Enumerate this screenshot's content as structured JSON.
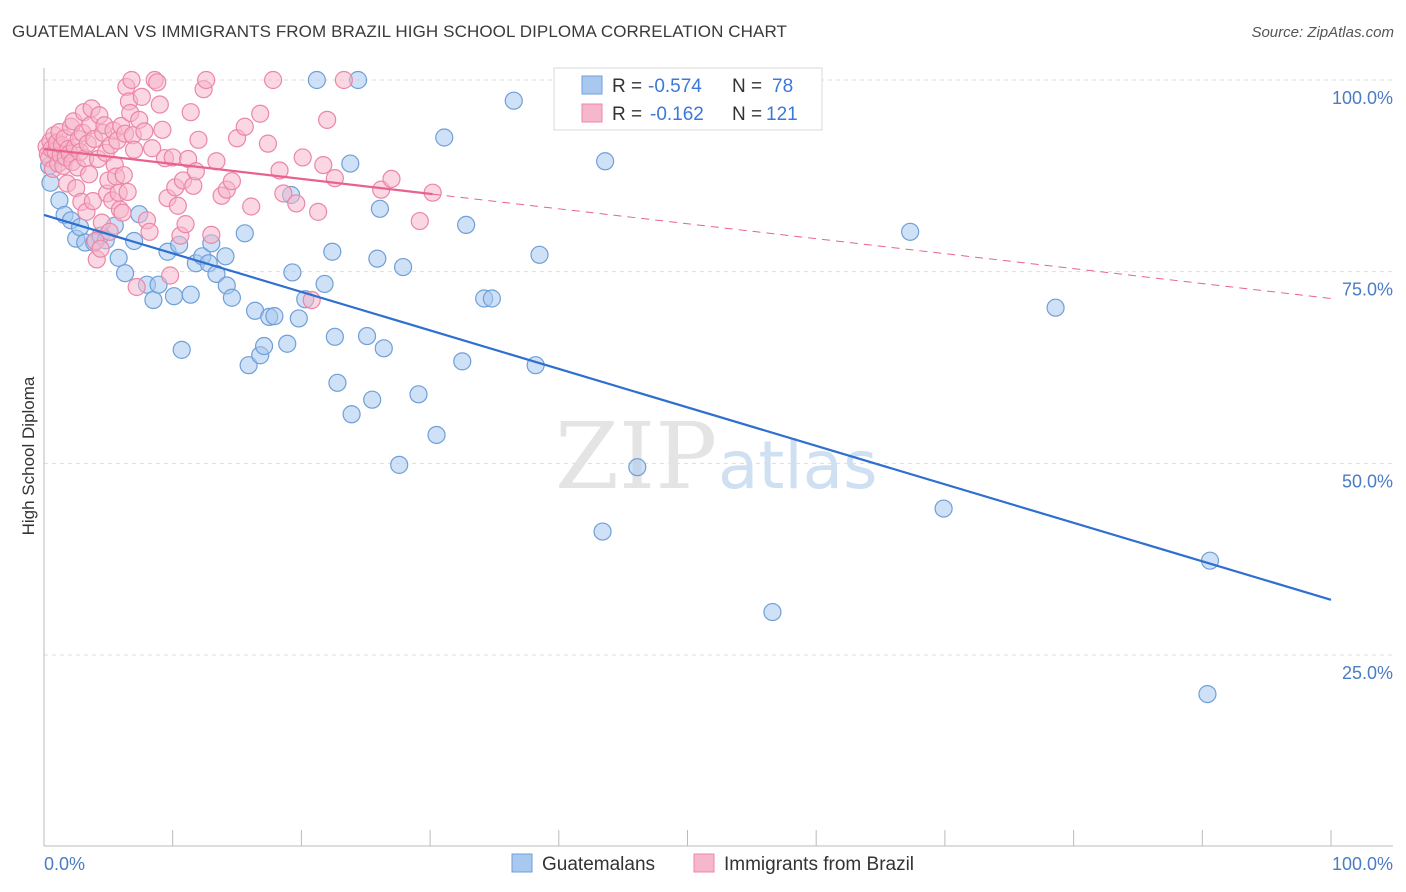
{
  "title": "GUATEMALAN VS IMMIGRANTS FROM BRAZIL HIGH SCHOOL DIPLOMA CORRELATION CHART",
  "source": "Source: ZipAtlas.com",
  "watermark": {
    "part1": "ZIP",
    "part2": "atlas"
  },
  "colors": {
    "blue_fill": "#a8c8f0",
    "blue_stroke": "#6f9fd8",
    "blue_line": "#2e6fd0",
    "pink_fill": "#f6b6cb",
    "pink_stroke": "#ec86a8",
    "pink_line": "#e8628e",
    "tick_text": "#4a7cc4",
    "grid": "#dddddd"
  },
  "legend": {
    "series": [
      {
        "r_label": "R =",
        "r_value": "-0.574",
        "n_label": "N =",
        "n_value": "78"
      },
      {
        "r_label": "R =",
        "r_value": "-0.162",
        "n_label": "N =",
        "n_value": "121"
      }
    ]
  },
  "bottom_legend": [
    "Guatemalans",
    "Immigrants from Brazil"
  ],
  "chart_data": {
    "type": "scatter",
    "title": "GUATEMALAN VS IMMIGRANTS FROM BRAZIL HIGH SCHOOL DIPLOMA CORRELATION CHART",
    "xlabel": "",
    "ylabel": "High School Diploma",
    "xlim": [
      0,
      100
    ],
    "ylim": [
      0,
      102
    ],
    "x_tick_labels": [
      "0.0%",
      "100.0%"
    ],
    "y_ticks": [
      25,
      50,
      75,
      100
    ],
    "y_tick_labels": [
      "25.0%",
      "50.0%",
      "75.0%",
      "100.0%"
    ],
    "series": [
      {
        "name": "Guatemalans",
        "r": -0.574,
        "n": 78,
        "trend": {
          "x0": 0,
          "y0": 82.4,
          "x1": 100,
          "y1": 32.2,
          "solid_to": 100
        },
        "points": [
          [
            0.4,
            88.8
          ],
          [
            0.5,
            86.6
          ],
          [
            1.2,
            84.3
          ],
          [
            1.6,
            82.4
          ],
          [
            2.1,
            81.7
          ],
          [
            2.5,
            79.3
          ],
          [
            2.8,
            80.8
          ],
          [
            3.2,
            78.8
          ],
          [
            3.9,
            78.8
          ],
          [
            4.4,
            79.7
          ],
          [
            4.8,
            79.1
          ],
          [
            5.5,
            81.0
          ],
          [
            5.8,
            76.8
          ],
          [
            6.3,
            74.8
          ],
          [
            7.0,
            79.0
          ],
          [
            7.4,
            82.5
          ],
          [
            8.0,
            73.3
          ],
          [
            8.5,
            71.3
          ],
          [
            8.9,
            73.3
          ],
          [
            9.6,
            77.6
          ],
          [
            10.1,
            71.8
          ],
          [
            10.5,
            78.5
          ],
          [
            10.7,
            64.8
          ],
          [
            11.4,
            72.0
          ],
          [
            11.8,
            76.1
          ],
          [
            12.3,
            77.0
          ],
          [
            12.8,
            76.1
          ],
          [
            13.0,
            78.7
          ],
          [
            13.4,
            74.7
          ],
          [
            14.1,
            77.0
          ],
          [
            14.2,
            73.2
          ],
          [
            14.6,
            71.6
          ],
          [
            15.6,
            80.0
          ],
          [
            15.9,
            62.8
          ],
          [
            16.4,
            69.9
          ],
          [
            16.8,
            64.1
          ],
          [
            17.1,
            65.3
          ],
          [
            17.5,
            69.1
          ],
          [
            17.9,
            69.2
          ],
          [
            18.9,
            65.6
          ],
          [
            19.3,
            74.9
          ],
          [
            19.2,
            85.0
          ],
          [
            19.8,
            68.9
          ],
          [
            20.3,
            71.4
          ],
          [
            21.2,
            100.0
          ],
          [
            21.8,
            73.4
          ],
          [
            22.4,
            77.6
          ],
          [
            22.6,
            66.5
          ],
          [
            22.8,
            60.5
          ],
          [
            23.8,
            89.1
          ],
          [
            23.9,
            56.4
          ],
          [
            24.4,
            100.0
          ],
          [
            25.1,
            66.6
          ],
          [
            25.5,
            58.3
          ],
          [
            25.9,
            76.7
          ],
          [
            26.1,
            83.2
          ],
          [
            26.4,
            65.0
          ],
          [
            27.6,
            49.8
          ],
          [
            27.9,
            75.6
          ],
          [
            29.1,
            59.0
          ],
          [
            30.5,
            53.7
          ],
          [
            31.1,
            92.5
          ],
          [
            32.5,
            63.3
          ],
          [
            32.8,
            81.1
          ],
          [
            34.2,
            71.5
          ],
          [
            34.8,
            71.5
          ],
          [
            36.5,
            97.3
          ],
          [
            38.2,
            62.8
          ],
          [
            38.5,
            77.2
          ],
          [
            43.4,
            41.1
          ],
          [
            43.6,
            89.4
          ],
          [
            46.1,
            49.5
          ],
          [
            56.6,
            30.6
          ],
          [
            67.3,
            80.2
          ],
          [
            69.9,
            44.1
          ],
          [
            78.6,
            70.3
          ],
          [
            90.4,
            19.9
          ],
          [
            90.6,
            37.3
          ]
        ]
      },
      {
        "name": "Immigrants from Brazil",
        "r": -0.162,
        "n": 121,
        "trend": {
          "x0": 0,
          "y0": 91.0,
          "x1": 100,
          "y1": 71.5,
          "solid_to": 30.2
        },
        "points": [
          [
            0.2,
            91.3
          ],
          [
            0.3,
            90.3
          ],
          [
            0.4,
            89.8
          ],
          [
            0.5,
            92.0
          ],
          [
            0.6,
            91.0
          ],
          [
            0.7,
            88.4
          ],
          [
            0.8,
            92.8
          ],
          [
            0.9,
            90.7
          ],
          [
            1.0,
            91.8
          ],
          [
            1.1,
            89.1
          ],
          [
            1.2,
            93.2
          ],
          [
            1.3,
            90.2
          ],
          [
            1.4,
            91.5
          ],
          [
            1.5,
            88.8
          ],
          [
            1.6,
            92.4
          ],
          [
            1.7,
            89.9
          ],
          [
            1.8,
            86.5
          ],
          [
            1.9,
            91.0
          ],
          [
            2.0,
            90.4
          ],
          [
            2.1,
            93.9
          ],
          [
            2.2,
            89.3
          ],
          [
            2.3,
            94.6
          ],
          [
            2.4,
            91.2
          ],
          [
            2.5,
            85.9
          ],
          [
            2.6,
            88.6
          ],
          [
            2.7,
            92.3
          ],
          [
            2.8,
            90.6
          ],
          [
            2.9,
            84.1
          ],
          [
            3.0,
            93.1
          ],
          [
            3.1,
            95.8
          ],
          [
            3.2,
            89.8
          ],
          [
            3.3,
            82.8
          ],
          [
            3.4,
            91.7
          ],
          [
            3.5,
            87.7
          ],
          [
            3.6,
            94.1
          ],
          [
            3.7,
            96.3
          ],
          [
            3.8,
            84.2
          ],
          [
            3.9,
            92.3
          ],
          [
            4.0,
            79.0
          ],
          [
            4.1,
            76.6
          ],
          [
            4.2,
            89.7
          ],
          [
            4.3,
            95.4
          ],
          [
            4.4,
            78.0
          ],
          [
            4.5,
            81.4
          ],
          [
            4.6,
            93.1
          ],
          [
            4.7,
            94.1
          ],
          [
            4.8,
            90.5
          ],
          [
            4.9,
            85.2
          ],
          [
            5.0,
            86.9
          ],
          [
            5.1,
            80.2
          ],
          [
            5.2,
            91.5
          ],
          [
            5.3,
            84.3
          ],
          [
            5.4,
            93.4
          ],
          [
            5.5,
            88.9
          ],
          [
            5.6,
            87.4
          ],
          [
            5.7,
            92.1
          ],
          [
            5.8,
            85.3
          ],
          [
            5.9,
            83.1
          ],
          [
            6.0,
            94.0
          ],
          [
            6.1,
            82.7
          ],
          [
            6.2,
            87.6
          ],
          [
            6.3,
            93.0
          ],
          [
            6.4,
            99.1
          ],
          [
            6.5,
            85.4
          ],
          [
            6.6,
            97.2
          ],
          [
            6.7,
            95.7
          ],
          [
            6.8,
            100.0
          ],
          [
            6.9,
            92.8
          ],
          [
            7.0,
            90.9
          ],
          [
            7.2,
            73.0
          ],
          [
            7.4,
            94.8
          ],
          [
            7.6,
            97.8
          ],
          [
            7.8,
            93.3
          ],
          [
            8.0,
            81.7
          ],
          [
            8.2,
            80.2
          ],
          [
            8.4,
            91.1
          ],
          [
            8.6,
            100.0
          ],
          [
            8.8,
            99.7
          ],
          [
            9.0,
            96.8
          ],
          [
            9.2,
            93.5
          ],
          [
            9.4,
            89.8
          ],
          [
            9.6,
            84.6
          ],
          [
            9.8,
            74.5
          ],
          [
            10.0,
            89.9
          ],
          [
            10.2,
            86.0
          ],
          [
            10.4,
            83.6
          ],
          [
            10.6,
            79.7
          ],
          [
            10.8,
            86.9
          ],
          [
            11.0,
            81.2
          ],
          [
            11.2,
            89.7
          ],
          [
            11.4,
            95.8
          ],
          [
            11.6,
            86.2
          ],
          [
            11.8,
            88.1
          ],
          [
            12.0,
            92.2
          ],
          [
            12.4,
            98.8
          ],
          [
            12.6,
            100.0
          ],
          [
            13.0,
            79.8
          ],
          [
            13.4,
            89.4
          ],
          [
            13.8,
            84.9
          ],
          [
            14.2,
            85.7
          ],
          [
            14.6,
            86.8
          ],
          [
            15.0,
            92.4
          ],
          [
            15.6,
            93.9
          ],
          [
            16.1,
            83.5
          ],
          [
            16.8,
            95.6
          ],
          [
            17.4,
            91.7
          ],
          [
            17.8,
            100.0
          ],
          [
            18.3,
            88.2
          ],
          [
            18.6,
            85.2
          ],
          [
            19.6,
            83.9
          ],
          [
            20.1,
            89.9
          ],
          [
            20.8,
            71.3
          ],
          [
            21.3,
            82.8
          ],
          [
            21.7,
            88.9
          ],
          [
            22.0,
            94.8
          ],
          [
            22.6,
            87.2
          ],
          [
            23.3,
            100.0
          ],
          [
            26.2,
            85.7
          ],
          [
            27.0,
            87.1
          ],
          [
            29.2,
            81.6
          ],
          [
            30.2,
            85.3
          ]
        ]
      }
    ],
    "grid": true,
    "legend_position": "top-center"
  }
}
